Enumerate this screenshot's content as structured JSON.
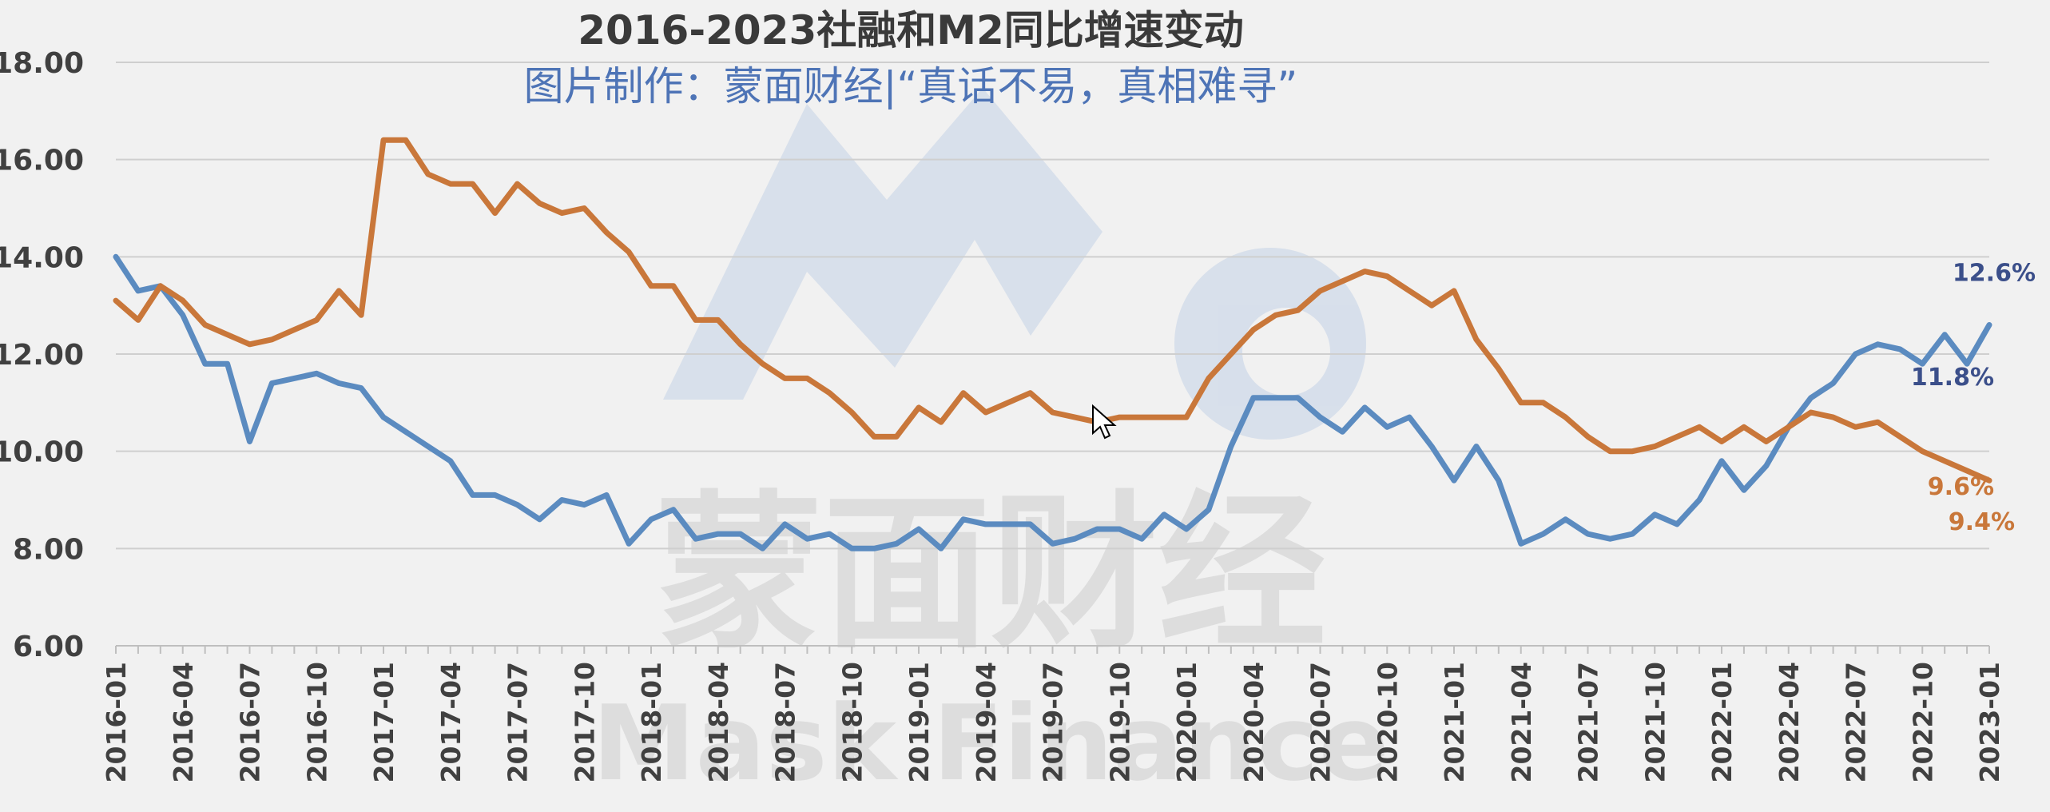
{
  "chart_data": {
    "type": "line",
    "title": "2016-2023社融和M2同比增速变动",
    "subtitle": "图片制作：蒙面财经|“真话不易，真相难寻”",
    "watermark": {
      "cn": "蒙面财经",
      "en": "Mask Finance"
    },
    "ylim": [
      6.0,
      18.0
    ],
    "yticks": [
      "18.00",
      "16.00",
      "14.00",
      "12.00",
      "10.00",
      "8.00",
      "6.00"
    ],
    "xtick_labels": [
      "2016-01",
      "2016-04",
      "2016-07",
      "2016-10",
      "2017-01",
      "2017-04",
      "2017-07",
      "2017-10",
      "2018-01",
      "2018-04",
      "2018-07",
      "2018-10",
      "2019-01",
      "2019-04",
      "2019-07",
      "2019-10",
      "2020-01",
      "2020-04",
      "2020-07",
      "2020-10",
      "2021-01",
      "2021-04",
      "2021-07",
      "2021-10",
      "2022-01",
      "2022-04",
      "2022-07",
      "2022-10",
      "2023-01"
    ],
    "grid": true,
    "series": [
      {
        "color": "#5b8bc0",
        "end_labels": [
          "12.6%",
          "11.8%"
        ],
        "values": [
          14.0,
          13.3,
          13.4,
          12.8,
          11.8,
          11.8,
          10.2,
          11.4,
          11.5,
          11.6,
          11.4,
          11.3,
          10.7,
          10.4,
          10.1,
          9.8,
          9.1,
          9.1,
          8.9,
          8.6,
          9.0,
          8.9,
          9.1,
          8.1,
          8.6,
          8.8,
          8.2,
          8.3,
          8.3,
          8.0,
          8.5,
          8.2,
          8.3,
          8.0,
          8.0,
          8.1,
          8.4,
          8.0,
          8.6,
          8.5,
          8.5,
          8.5,
          8.1,
          8.2,
          8.4,
          8.4,
          8.2,
          8.7,
          8.4,
          8.8,
          10.1,
          11.1,
          11.1,
          11.1,
          10.7,
          10.4,
          10.9,
          10.5,
          10.7,
          10.1,
          9.4,
          10.1,
          9.4,
          8.1,
          8.3,
          8.6,
          8.3,
          8.2,
          8.3,
          8.7,
          8.5,
          9.0,
          9.8,
          9.2,
          9.7,
          10.5,
          11.1,
          11.4,
          12.0,
          12.2,
          12.1,
          11.8,
          12.4,
          11.8,
          12.6
        ]
      },
      {
        "color": "#c9773a",
        "end_labels": [
          "9.6%",
          "9.4%"
        ],
        "values": [
          13.1,
          12.7,
          13.4,
          13.1,
          12.6,
          12.4,
          12.2,
          12.3,
          12.5,
          12.7,
          13.3,
          12.8,
          16.4,
          16.4,
          15.7,
          15.5,
          15.5,
          14.9,
          15.5,
          15.1,
          14.9,
          15.0,
          14.5,
          14.1,
          13.4,
          13.4,
          12.7,
          12.7,
          12.2,
          11.8,
          11.5,
          11.5,
          11.2,
          10.8,
          10.3,
          10.3,
          10.9,
          10.6,
          11.2,
          10.8,
          11.0,
          11.2,
          10.8,
          10.7,
          10.6,
          10.7,
          10.7,
          10.7,
          10.7,
          11.5,
          12.0,
          12.5,
          12.8,
          12.9,
          13.3,
          13.5,
          13.7,
          13.6,
          13.3,
          13.0,
          13.3,
          12.3,
          11.7,
          11.0,
          11.0,
          10.7,
          10.3,
          10.0,
          10.0,
          10.1,
          10.3,
          10.5,
          10.2,
          10.5,
          10.2,
          10.5,
          10.8,
          10.7,
          10.5,
          10.6,
          10.3,
          10.0,
          9.8,
          9.6,
          9.4
        ]
      }
    ]
  }
}
